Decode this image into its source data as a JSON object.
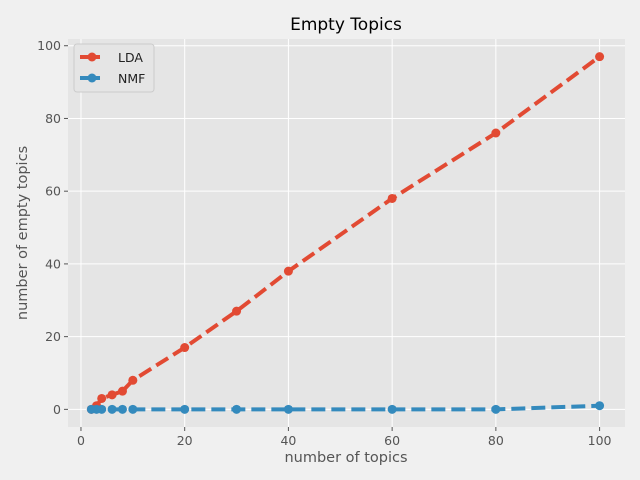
{
  "chart_data": {
    "type": "line",
    "title": "Empty Topics",
    "xlabel": "number of topics",
    "ylabel": "number of empty topics",
    "xlim": [
      -2.5,
      104.9
    ],
    "ylim": [
      -4.85,
      101.85
    ],
    "xticks": [
      0,
      20,
      40,
      60,
      80,
      100
    ],
    "yticks": [
      0,
      20,
      40,
      60,
      80,
      100
    ],
    "grid": true,
    "legend_position": "top-left",
    "series": [
      {
        "name": "LDA",
        "color": "#E24A33",
        "x": [
          2,
          3,
          4,
          6,
          8,
          10,
          20,
          30,
          40,
          60,
          80,
          100
        ],
        "y": [
          0,
          1,
          3,
          4,
          5,
          8,
          17,
          27,
          38,
          58,
          76,
          97
        ]
      },
      {
        "name": "NMF",
        "color": "#348ABD",
        "x": [
          2,
          3,
          4,
          6,
          8,
          10,
          20,
          30,
          40,
          60,
          80,
          100
        ],
        "y": [
          0,
          0,
          0,
          0,
          0,
          0,
          0,
          0,
          0,
          0,
          0,
          1
        ]
      }
    ]
  }
}
